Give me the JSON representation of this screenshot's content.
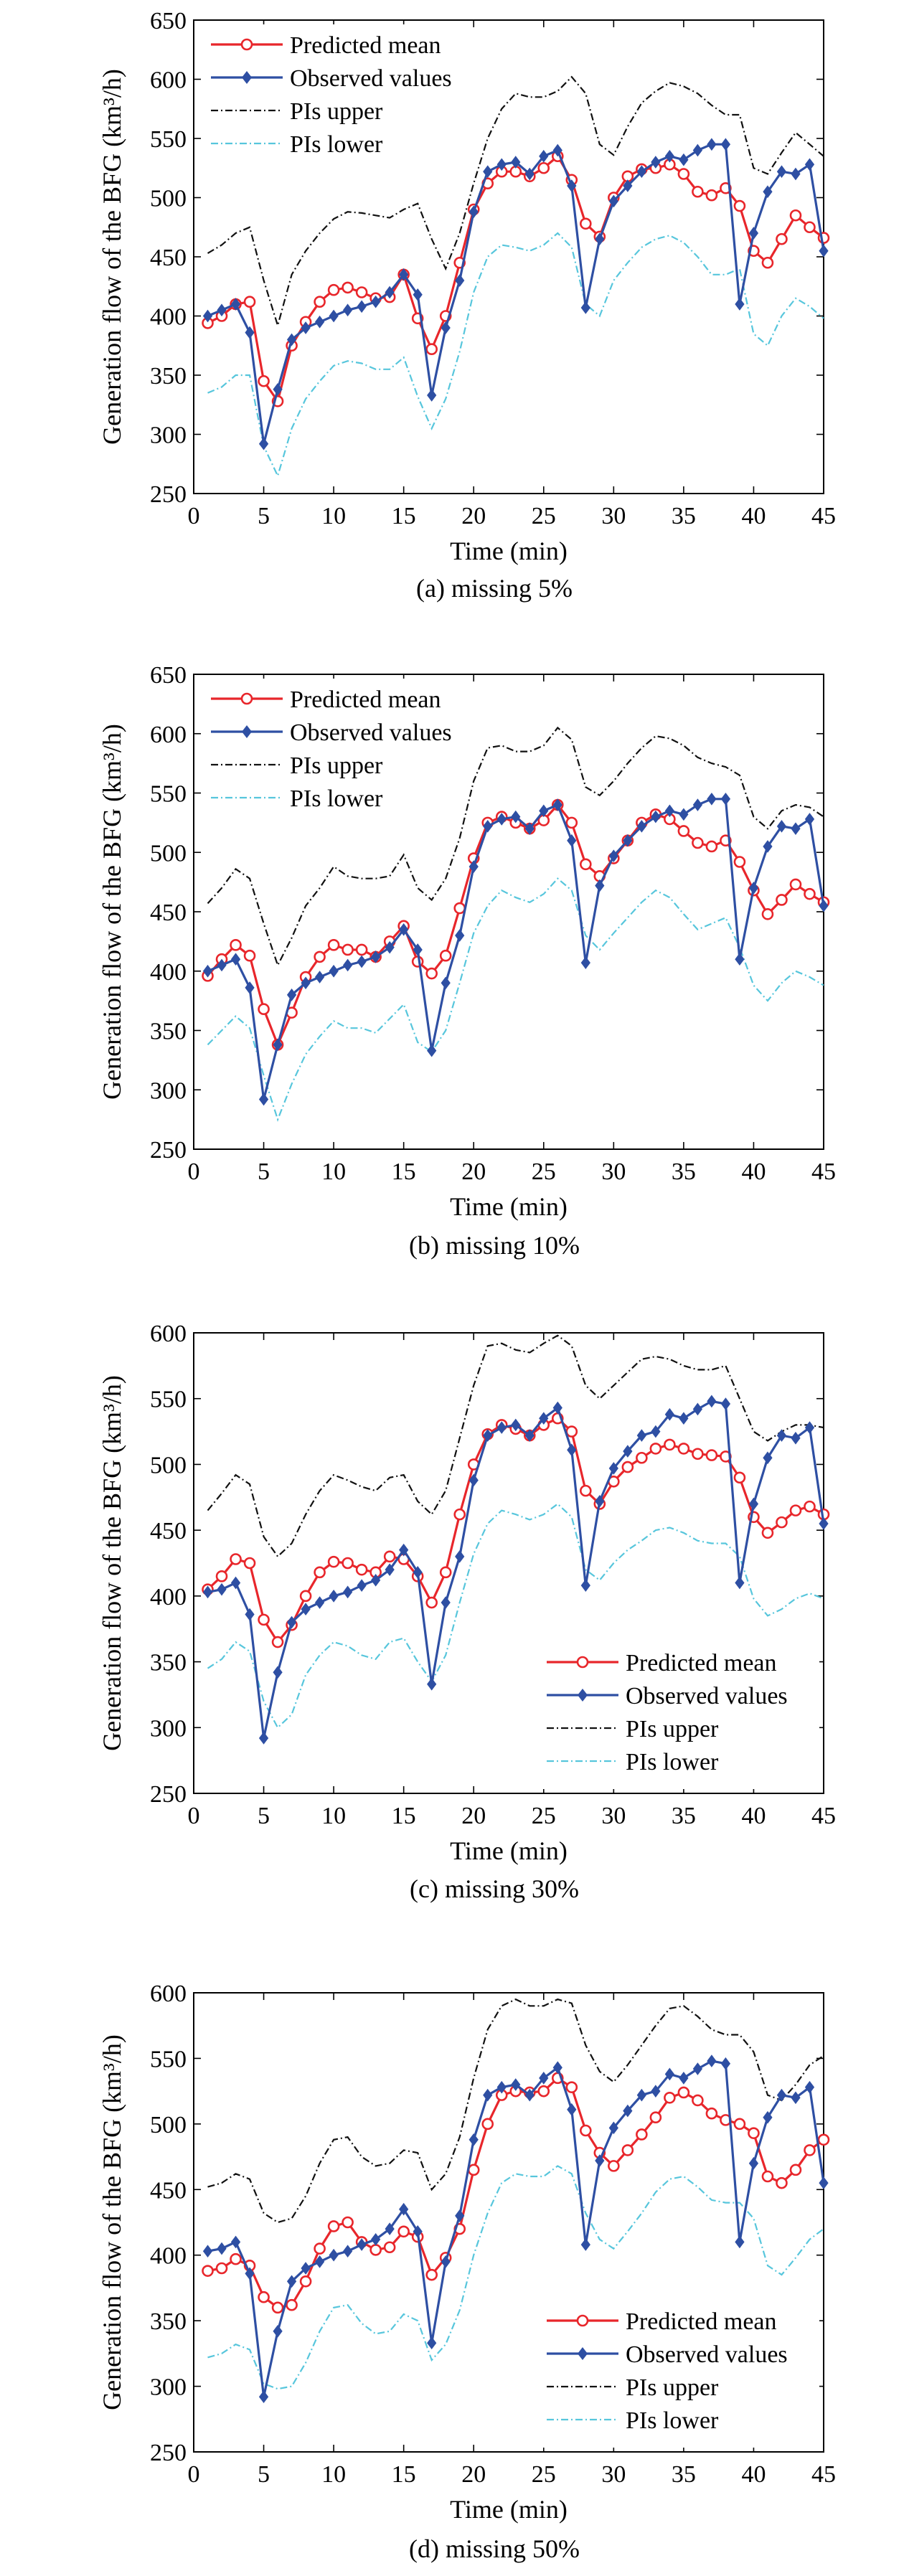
{
  "figure": {
    "ylabel": "Generation flow of the BFG (km³/h)",
    "xlabel": "Time (min)"
  },
  "chart_data": [
    {
      "type": "line",
      "caption": "(a) missing 5%",
      "xlabel": "Time (min)",
      "ylabel": "Generation flow of the BFG (km³/h)",
      "xlim": [
        0,
        45
      ],
      "ylim": [
        250,
        650
      ],
      "xticks": [
        0,
        5,
        10,
        15,
        20,
        25,
        30,
        35,
        40,
        45
      ],
      "yticks": [
        250,
        300,
        350,
        400,
        450,
        500,
        550,
        600,
        650
      ],
      "legend_position": "top-left",
      "x": [
        1,
        2,
        3,
        4,
        5,
        6,
        7,
        8,
        9,
        10,
        11,
        12,
        13,
        14,
        15,
        16,
        17,
        18,
        19,
        20,
        21,
        22,
        23,
        24,
        25,
        26,
        27,
        28,
        29,
        30,
        31,
        32,
        33,
        34,
        35,
        36,
        37,
        38,
        39,
        40,
        41,
        42,
        43,
        44,
        45
      ],
      "series": [
        {
          "name": "Predicted mean",
          "color": "#e8262b",
          "marker": "circle",
          "style": "solid",
          "values": [
            394,
            400,
            410,
            412,
            345,
            328,
            375,
            395,
            412,
            422,
            424,
            420,
            415,
            416,
            435,
            398,
            372,
            400,
            445,
            490,
            512,
            522,
            522,
            518,
            525,
            535,
            515,
            478,
            467,
            500,
            518,
            524,
            525,
            528,
            520,
            505,
            502,
            508,
            493,
            455,
            445,
            465,
            485,
            475,
            466
          ]
        },
        {
          "name": "Observed values",
          "color": "#2e4fa3",
          "marker": "diamond",
          "style": "solid",
          "values": [
            400,
            405,
            410,
            386,
            292,
            338,
            380,
            390,
            395,
            400,
            405,
            408,
            412,
            420,
            435,
            418,
            333,
            390,
            430,
            488,
            522,
            528,
            530,
            520,
            535,
            540,
            510,
            407,
            465,
            497,
            510,
            522,
            530,
            535,
            532,
            540,
            545,
            545,
            410,
            470,
            505,
            522,
            520,
            528,
            455
          ]
        },
        {
          "name": "PIs upper",
          "color": "#111111",
          "marker": "none",
          "style": "dashdot",
          "values": [
            453,
            460,
            470,
            475,
            430,
            392,
            435,
            455,
            470,
            482,
            488,
            487,
            485,
            483,
            490,
            495,
            465,
            440,
            470,
            512,
            550,
            575,
            588,
            585,
            585,
            590,
            602,
            588,
            545,
            536,
            560,
            580,
            590,
            597,
            594,
            588,
            578,
            570,
            570,
            525,
            520,
            538,
            555,
            545,
            535
          ]
        },
        {
          "name": "PIs lower",
          "color": "#57c6dc",
          "marker": "none",
          "style": "dashdot",
          "values": [
            335,
            340,
            350,
            350,
            290,
            265,
            305,
            330,
            345,
            358,
            362,
            360,
            355,
            355,
            365,
            332,
            305,
            330,
            370,
            420,
            450,
            460,
            458,
            455,
            460,
            470,
            458,
            410,
            400,
            430,
            445,
            458,
            465,
            468,
            462,
            450,
            435,
            435,
            440,
            385,
            375,
            400,
            415,
            408,
            398
          ]
        }
      ]
    },
    {
      "type": "line",
      "caption": "(b) missing 10%",
      "xlabel": "Time (min)",
      "ylabel": "Generation flow of the BFG (km³/h)",
      "xlim": [
        0,
        45
      ],
      "ylim": [
        250,
        650
      ],
      "xticks": [
        0,
        5,
        10,
        15,
        20,
        25,
        30,
        35,
        40,
        45
      ],
      "yticks": [
        250,
        300,
        350,
        400,
        450,
        500,
        550,
        600,
        650
      ],
      "legend_position": "top-left",
      "x": [
        1,
        2,
        3,
        4,
        5,
        6,
        7,
        8,
        9,
        10,
        11,
        12,
        13,
        14,
        15,
        16,
        17,
        18,
        19,
        20,
        21,
        22,
        23,
        24,
        25,
        26,
        27,
        28,
        29,
        30,
        31,
        32,
        33,
        34,
        35,
        36,
        37,
        38,
        39,
        40,
        41,
        42,
        43,
        44,
        45
      ],
      "series": [
        {
          "name": "Predicted mean",
          "color": "#e8262b",
          "marker": "circle",
          "style": "solid",
          "values": [
            396,
            410,
            422,
            413,
            368,
            338,
            365,
            395,
            412,
            422,
            418,
            418,
            412,
            425,
            438,
            408,
            398,
            413,
            453,
            495,
            525,
            530,
            525,
            520,
            527,
            540,
            525,
            490,
            480,
            495,
            510,
            525,
            532,
            528,
            518,
            508,
            505,
            510,
            492,
            468,
            448,
            460,
            473,
            465,
            458
          ]
        },
        {
          "name": "Observed values",
          "color": "#2e4fa3",
          "marker": "diamond",
          "style": "solid",
          "values": [
            400,
            405,
            410,
            386,
            292,
            338,
            380,
            390,
            395,
            400,
            405,
            408,
            412,
            420,
            435,
            418,
            333,
            390,
            430,
            488,
            522,
            528,
            530,
            520,
            535,
            540,
            510,
            407,
            472,
            497,
            510,
            522,
            530,
            535,
            532,
            540,
            545,
            545,
            410,
            470,
            505,
            522,
            520,
            528,
            455
          ]
        },
        {
          "name": "PIs upper",
          "color": "#111111",
          "marker": "none",
          "style": "dashdot",
          "values": [
            457,
            470,
            486,
            478,
            440,
            405,
            428,
            455,
            470,
            488,
            480,
            478,
            478,
            480,
            498,
            470,
            460,
            478,
            512,
            560,
            588,
            590,
            585,
            585,
            590,
            605,
            595,
            555,
            548,
            560,
            575,
            588,
            598,
            596,
            590,
            580,
            575,
            572,
            565,
            530,
            520,
            535,
            540,
            538,
            530
          ]
        },
        {
          "name": "PIs lower",
          "color": "#57c6dc",
          "marker": "none",
          "style": "dashdot",
          "values": [
            338,
            350,
            362,
            352,
            312,
            275,
            305,
            330,
            345,
            358,
            352,
            352,
            348,
            360,
            372,
            340,
            332,
            350,
            390,
            432,
            455,
            468,
            462,
            458,
            465,
            478,
            468,
            430,
            418,
            432,
            445,
            458,
            468,
            462,
            448,
            435,
            440,
            445,
            420,
            388,
            375,
            390,
            400,
            395,
            388
          ]
        }
      ]
    },
    {
      "type": "line",
      "caption": "(c) missing 30%",
      "xlabel": "Time (min)",
      "ylabel": "Generation flow of the BFG (km³/h)",
      "xlim": [
        0,
        45
      ],
      "ylim": [
        250,
        600
      ],
      "xticks": [
        0,
        5,
        10,
        15,
        20,
        25,
        30,
        35,
        40,
        45
      ],
      "yticks": [
        250,
        300,
        350,
        400,
        450,
        500,
        550,
        600
      ],
      "legend_position": "bottom-right",
      "x": [
        1,
        2,
        3,
        4,
        5,
        6,
        7,
        8,
        9,
        10,
        11,
        12,
        13,
        14,
        15,
        16,
        17,
        18,
        19,
        20,
        21,
        22,
        23,
        24,
        25,
        26,
        27,
        28,
        29,
        30,
        31,
        32,
        33,
        34,
        35,
        36,
        37,
        38,
        39,
        40,
        41,
        42,
        43,
        44,
        45
      ],
      "series": [
        {
          "name": "Predicted mean",
          "color": "#e8262b",
          "marker": "circle",
          "style": "solid",
          "values": [
            405,
            415,
            428,
            425,
            382,
            365,
            378,
            400,
            418,
            426,
            425,
            420,
            418,
            430,
            428,
            415,
            395,
            418,
            462,
            500,
            523,
            530,
            527,
            522,
            530,
            535,
            525,
            480,
            470,
            487,
            498,
            505,
            512,
            515,
            512,
            508,
            507,
            506,
            490,
            460,
            448,
            456,
            465,
            468,
            462
          ]
        },
        {
          "name": "Observed values",
          "color": "#2e4fa3",
          "marker": "diamond",
          "style": "solid",
          "values": [
            403,
            405,
            410,
            386,
            292,
            342,
            380,
            390,
            395,
            400,
            403,
            408,
            412,
            420,
            435,
            418,
            333,
            395,
            430,
            488,
            522,
            528,
            530,
            522,
            535,
            543,
            511,
            408,
            472,
            497,
            510,
            522,
            525,
            538,
            535,
            542,
            548,
            546,
            410,
            470,
            505,
            522,
            520,
            528,
            455
          ]
        },
        {
          "name": "PIs upper",
          "color": "#111111",
          "marker": "none",
          "style": "dashdot",
          "values": [
            465,
            478,
            492,
            485,
            445,
            430,
            440,
            462,
            480,
            492,
            488,
            483,
            480,
            490,
            492,
            472,
            462,
            480,
            520,
            560,
            590,
            592,
            587,
            585,
            592,
            598,
            590,
            560,
            550,
            560,
            570,
            580,
            582,
            580,
            575,
            572,
            572,
            575,
            550,
            525,
            518,
            525,
            530,
            530,
            528
          ]
        },
        {
          "name": "PIs lower",
          "color": "#57c6dc",
          "marker": "none",
          "style": "dashdot",
          "values": [
            345,
            352,
            365,
            358,
            320,
            300,
            310,
            340,
            355,
            365,
            362,
            355,
            352,
            365,
            368,
            350,
            335,
            355,
            395,
            432,
            455,
            465,
            462,
            458,
            462,
            470,
            460,
            420,
            412,
            425,
            435,
            442,
            450,
            452,
            448,
            442,
            440,
            440,
            430,
            398,
            385,
            390,
            398,
            402,
            398
          ]
        }
      ]
    },
    {
      "type": "line",
      "caption": "(d) missing 50%",
      "xlabel": "Time (min)",
      "ylabel": "Generation flow of the BFG (km³/h)",
      "xlim": [
        0,
        45
      ],
      "ylim": [
        250,
        600
      ],
      "xticks": [
        0,
        5,
        10,
        15,
        20,
        25,
        30,
        35,
        40,
        45
      ],
      "yticks": [
        250,
        300,
        350,
        400,
        450,
        500,
        550,
        600
      ],
      "legend_position": "bottom-right",
      "x": [
        1,
        2,
        3,
        4,
        5,
        6,
        7,
        8,
        9,
        10,
        11,
        12,
        13,
        14,
        15,
        16,
        17,
        18,
        19,
        20,
        21,
        22,
        23,
        24,
        25,
        26,
        27,
        28,
        29,
        30,
        31,
        32,
        33,
        34,
        35,
        36,
        37,
        38,
        39,
        40,
        41,
        42,
        43,
        44,
        45
      ],
      "series": [
        {
          "name": "Predicted mean",
          "color": "#e8262b",
          "marker": "circle",
          "style": "solid",
          "values": [
            388,
            390,
            397,
            392,
            368,
            360,
            362,
            380,
            405,
            422,
            425,
            410,
            404,
            406,
            418,
            414,
            385,
            398,
            420,
            465,
            500,
            522,
            525,
            524,
            525,
            535,
            528,
            495,
            478,
            468,
            480,
            492,
            505,
            520,
            524,
            518,
            508,
            503,
            500,
            493,
            460,
            455,
            465,
            480,
            488
          ]
        },
        {
          "name": "Observed values",
          "color": "#2e4fa3",
          "marker": "diamond",
          "style": "solid",
          "values": [
            403,
            405,
            410,
            386,
            292,
            342,
            380,
            390,
            395,
            400,
            403,
            408,
            412,
            420,
            435,
            418,
            333,
            395,
            430,
            488,
            522,
            528,
            530,
            522,
            535,
            543,
            511,
            408,
            472,
            497,
            510,
            522,
            525,
            538,
            535,
            542,
            548,
            546,
            410,
            470,
            505,
            522,
            520,
            528,
            455
          ]
        },
        {
          "name": "PIs upper",
          "color": "#111111",
          "marker": "none",
          "style": "dashdot",
          "values": [
            452,
            455,
            462,
            458,
            432,
            425,
            428,
            445,
            470,
            488,
            490,
            475,
            468,
            470,
            480,
            478,
            450,
            462,
            490,
            535,
            572,
            590,
            595,
            590,
            590,
            595,
            592,
            560,
            540,
            532,
            545,
            560,
            575,
            588,
            590,
            582,
            572,
            568,
            568,
            555,
            522,
            518,
            530,
            545,
            552
          ]
        },
        {
          "name": "PIs lower",
          "color": "#57c6dc",
          "marker": "none",
          "style": "dashdot",
          "values": [
            322,
            325,
            332,
            328,
            302,
            298,
            300,
            318,
            342,
            360,
            362,
            348,
            340,
            342,
            355,
            350,
            320,
            332,
            358,
            400,
            432,
            455,
            462,
            460,
            460,
            468,
            462,
            432,
            412,
            405,
            418,
            432,
            448,
            458,
            460,
            452,
            442,
            440,
            440,
            428,
            392,
            385,
            398,
            412,
            420
          ]
        }
      ]
    }
  ]
}
